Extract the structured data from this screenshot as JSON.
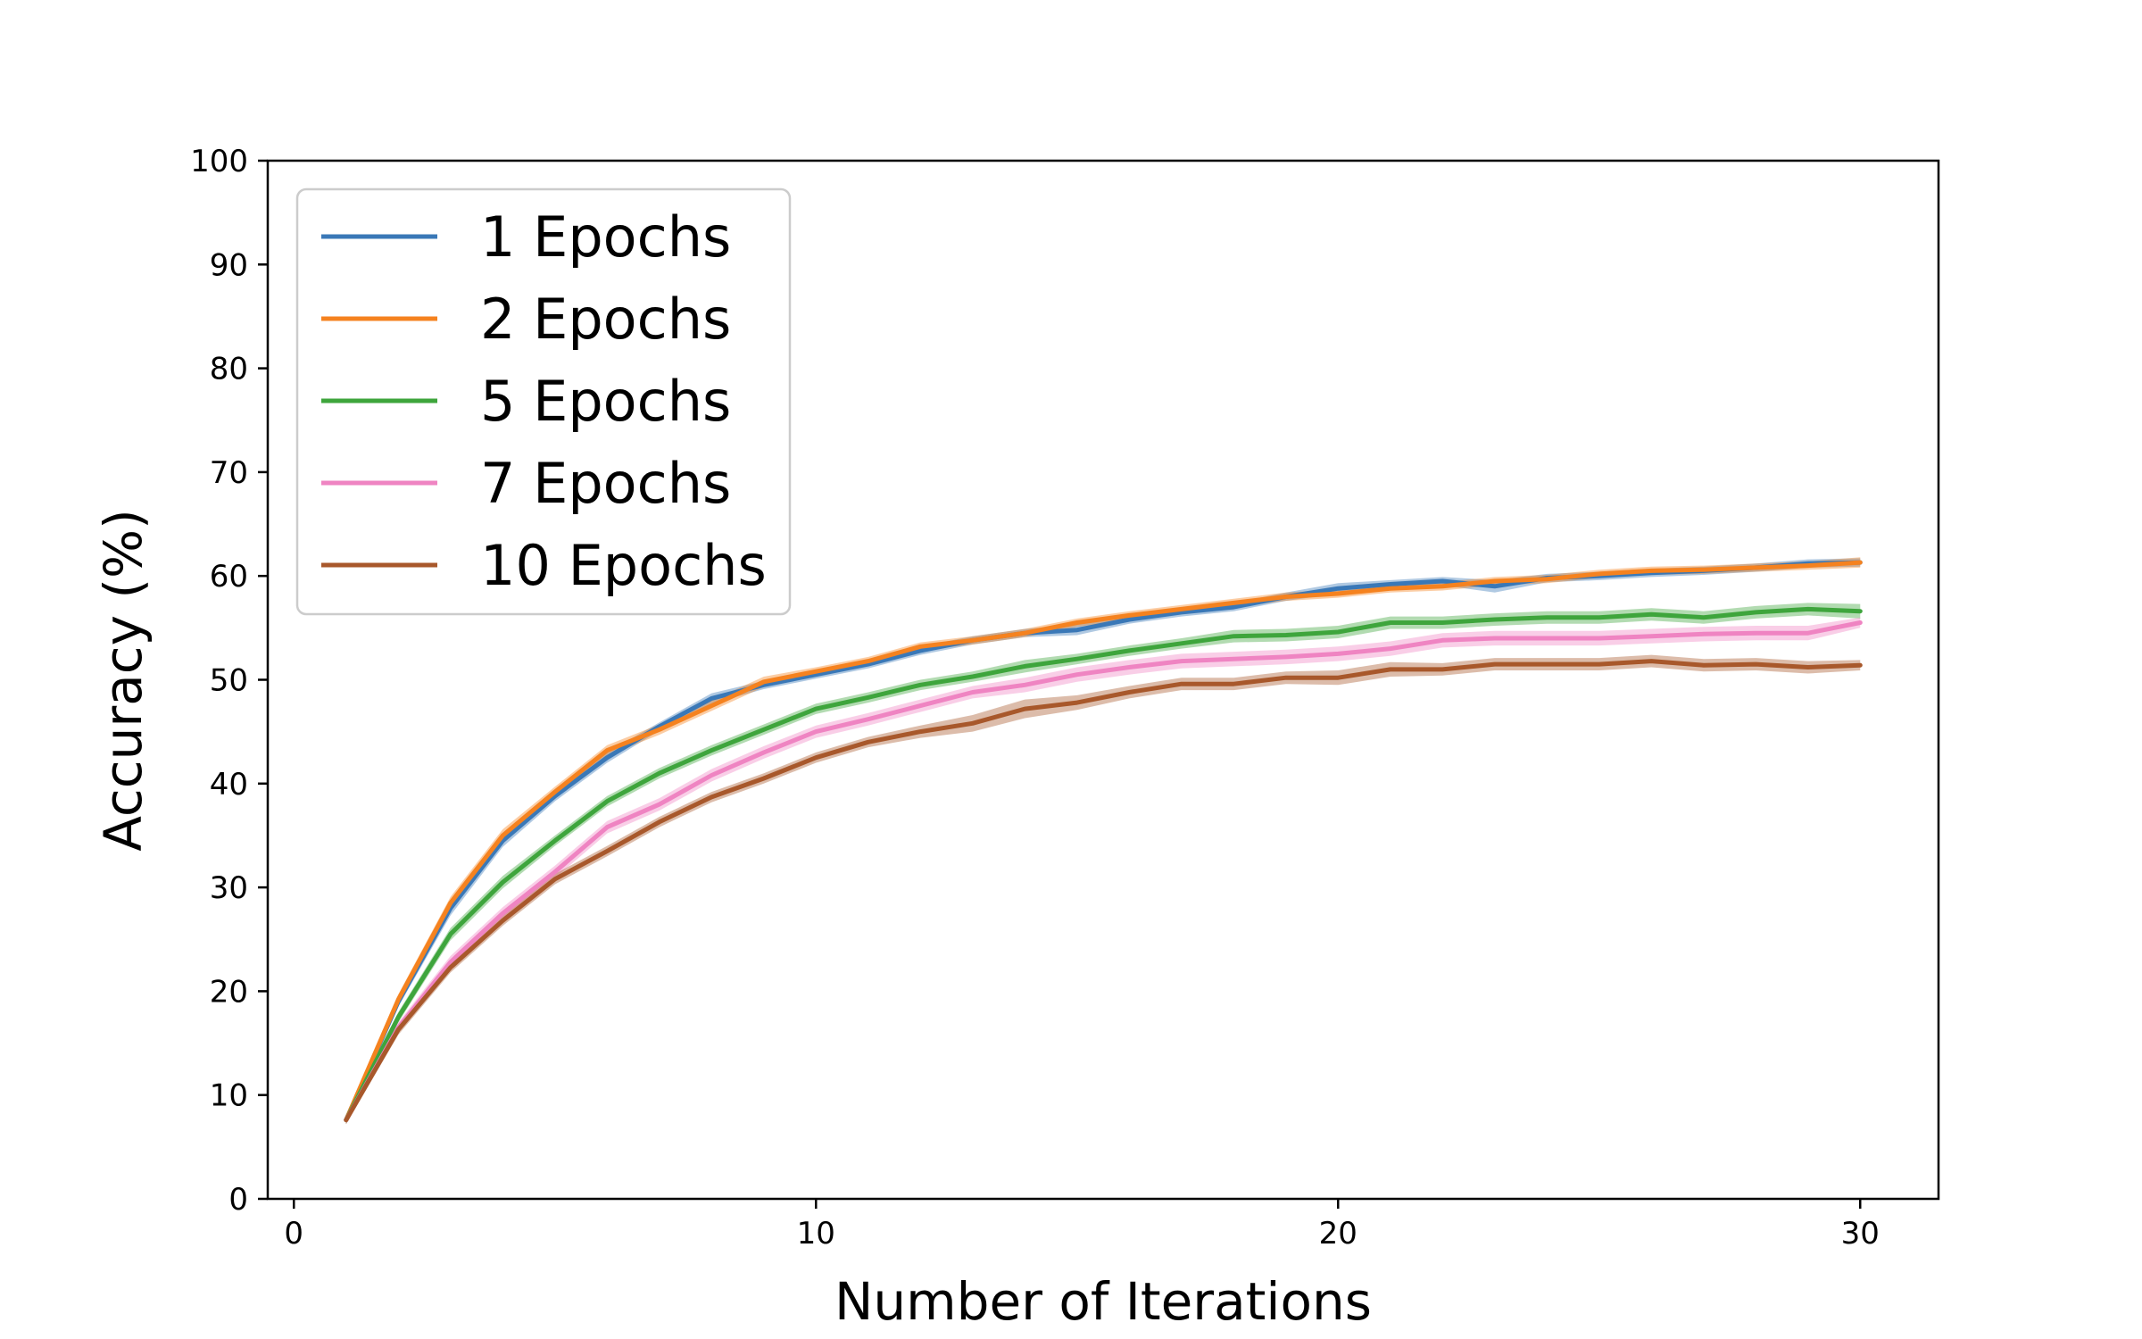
{
  "chart_data": {
    "type": "line",
    "title": "",
    "xlabel": "Number of Iterations",
    "ylabel": "Accuracy (%)",
    "xlim": [
      -0.5,
      31.5
    ],
    "ylim": [
      0,
      100
    ],
    "xticks": [
      0,
      10,
      20,
      30
    ],
    "yticks": [
      0,
      10,
      20,
      30,
      40,
      50,
      60,
      70,
      80,
      90,
      100
    ],
    "legend_position": "upper-left",
    "x": [
      1,
      2,
      3,
      4,
      5,
      6,
      7,
      8,
      9,
      10,
      11,
      12,
      13,
      14,
      15,
      16,
      17,
      18,
      19,
      20,
      21,
      22,
      23,
      24,
      25,
      26,
      27,
      28,
      29,
      30
    ],
    "series": [
      {
        "name": "1 Epochs",
        "color": "#3a78b7",
        "values": [
          7.6,
          19.0,
          28.0,
          34.5,
          38.8,
          42.5,
          45.5,
          48.2,
          49.5,
          50.5,
          51.5,
          52.8,
          53.8,
          54.5,
          54.8,
          55.8,
          56.5,
          57.0,
          58.0,
          58.8,
          59.2,
          59.5,
          59.0,
          59.8,
          60.0,
          60.3,
          60.5,
          60.8,
          61.2,
          61.3
        ],
        "band": [
          0.4,
          0.5,
          0.7,
          0.6,
          0.5,
          0.5,
          0.4,
          0.5,
          0.4,
          0.4,
          0.4,
          0.4,
          0.4,
          0.4,
          0.5,
          0.4,
          0.4,
          0.4,
          0.4,
          0.5,
          0.4,
          0.4,
          0.6,
          0.4,
          0.4,
          0.4,
          0.4,
          0.4,
          0.4,
          0.4
        ]
      },
      {
        "name": "2 Epochs",
        "color": "#f5821f",
        "values": [
          7.6,
          19.2,
          28.5,
          35.0,
          39.2,
          43.2,
          45.2,
          47.5,
          49.8,
          50.8,
          51.8,
          53.2,
          53.8,
          54.5,
          55.5,
          56.2,
          56.8,
          57.4,
          58.0,
          58.3,
          58.8,
          59.0,
          59.5,
          59.7,
          60.2,
          60.5,
          60.6,
          60.8,
          61.0,
          61.3
        ],
        "band": [
          0.4,
          0.5,
          0.6,
          0.6,
          0.5,
          0.5,
          0.5,
          0.5,
          0.5,
          0.4,
          0.4,
          0.4,
          0.4,
          0.4,
          0.4,
          0.4,
          0.4,
          0.4,
          0.4,
          0.4,
          0.4,
          0.4,
          0.4,
          0.4,
          0.4,
          0.4,
          0.4,
          0.4,
          0.4,
          0.5
        ]
      },
      {
        "name": "5 Epochs",
        "color": "#3ea53c",
        "values": [
          7.6,
          17.5,
          25.5,
          30.5,
          34.5,
          38.3,
          41.0,
          43.2,
          45.2,
          47.2,
          48.3,
          49.5,
          50.3,
          51.3,
          52.0,
          52.8,
          53.5,
          54.2,
          54.3,
          54.6,
          55.5,
          55.5,
          55.8,
          56.0,
          56.0,
          56.3,
          56.0,
          56.5,
          56.8,
          56.6
        ],
        "band": [
          0.4,
          0.5,
          0.6,
          0.6,
          0.5,
          0.5,
          0.5,
          0.5,
          0.5,
          0.5,
          0.5,
          0.5,
          0.5,
          0.6,
          0.5,
          0.5,
          0.5,
          0.6,
          0.6,
          0.6,
          0.6,
          0.6,
          0.6,
          0.6,
          0.6,
          0.6,
          0.6,
          0.6,
          0.6,
          0.7
        ]
      },
      {
        "name": "7 Epochs",
        "color": "#ef84c2",
        "values": [
          7.6,
          16.5,
          22.8,
          27.5,
          31.5,
          35.8,
          38.0,
          40.8,
          43.0,
          45.0,
          46.2,
          47.5,
          48.8,
          49.5,
          50.5,
          51.2,
          51.8,
          52.0,
          52.2,
          52.5,
          53.0,
          53.8,
          54.0,
          54.0,
          54.0,
          54.2,
          54.4,
          54.5,
          54.5,
          55.5
        ],
        "band": [
          0.4,
          0.5,
          0.6,
          0.6,
          0.6,
          0.6,
          0.6,
          0.6,
          0.6,
          0.6,
          0.6,
          0.6,
          0.6,
          0.7,
          0.7,
          0.7,
          0.7,
          0.7,
          0.7,
          0.7,
          0.7,
          0.7,
          0.7,
          0.7,
          0.7,
          0.7,
          0.7,
          0.7,
          0.7,
          0.5
        ]
      },
      {
        "name": "10 Epochs",
        "color": "#a8582b",
        "values": [
          7.6,
          16.3,
          22.3,
          26.8,
          30.8,
          33.5,
          36.3,
          38.7,
          40.5,
          42.5,
          44.0,
          45.0,
          45.8,
          47.2,
          47.8,
          48.8,
          49.6,
          49.6,
          50.2,
          50.2,
          51.0,
          51.0,
          51.5,
          51.5,
          51.5,
          51.8,
          51.4,
          51.5,
          51.2,
          51.4
        ],
        "band": [
          0.4,
          0.5,
          0.5,
          0.5,
          0.5,
          0.5,
          0.5,
          0.5,
          0.5,
          0.5,
          0.5,
          0.6,
          0.8,
          0.9,
          0.7,
          0.6,
          0.6,
          0.6,
          0.6,
          0.7,
          0.7,
          0.6,
          0.6,
          0.6,
          0.6,
          0.6,
          0.6,
          0.6,
          0.6,
          0.5
        ]
      }
    ]
  }
}
